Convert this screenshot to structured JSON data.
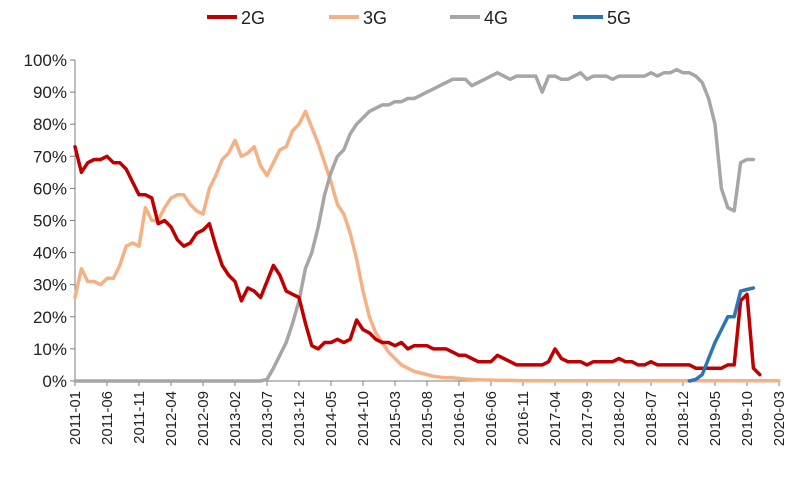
{
  "chart_data": {
    "type": "line",
    "title": "",
    "xlabel": "",
    "ylabel": "",
    "ylim": [
      0,
      100
    ],
    "y_ticks": [
      "0%",
      "10%",
      "20%",
      "30%",
      "40%",
      "50%",
      "60%",
      "70%",
      "80%",
      "90%",
      "100%"
    ],
    "x_ticks": [
      "2011-01",
      "2011-06",
      "2011-11",
      "2012-04",
      "2012-09",
      "2013-02",
      "2013-07",
      "2013-12",
      "2014-05",
      "2014-10",
      "2015-03",
      "2015-08",
      "2016-01",
      "2016-06",
      "2016-11",
      "2017-04",
      "2017-09",
      "2018-02",
      "2018-07",
      "2018-12",
      "2019-05",
      "2019-10",
      "2020-03"
    ],
    "x_index_range": [
      0,
      110
    ],
    "legend_position": "top",
    "grid": false,
    "series": [
      {
        "name": "2G",
        "color": "#c00000",
        "points": [
          [
            0,
            73
          ],
          [
            1,
            65
          ],
          [
            2,
            68
          ],
          [
            3,
            69
          ],
          [
            4,
            69
          ],
          [
            5,
            70
          ],
          [
            6,
            68
          ],
          [
            7,
            68
          ],
          [
            8,
            66
          ],
          [
            9,
            62
          ],
          [
            10,
            58
          ],
          [
            11,
            58
          ],
          [
            12,
            57
          ],
          [
            13,
            49
          ],
          [
            14,
            50
          ],
          [
            15,
            48
          ],
          [
            16,
            44
          ],
          [
            17,
            42
          ],
          [
            18,
            43
          ],
          [
            19,
            46
          ],
          [
            20,
            47
          ],
          [
            21,
            49
          ],
          [
            22,
            42
          ],
          [
            23,
            36
          ],
          [
            24,
            33
          ],
          [
            25,
            31
          ],
          [
            26,
            25
          ],
          [
            27,
            29
          ],
          [
            28,
            28
          ],
          [
            29,
            26
          ],
          [
            30,
            31
          ],
          [
            31,
            36
          ],
          [
            32,
            33
          ],
          [
            33,
            28
          ],
          [
            34,
            27
          ],
          [
            35,
            26
          ],
          [
            36,
            18
          ],
          [
            37,
            11
          ],
          [
            38,
            10
          ],
          [
            39,
            12
          ],
          [
            40,
            12
          ],
          [
            41,
            13
          ],
          [
            42,
            12
          ],
          [
            43,
            13
          ],
          [
            44,
            19
          ],
          [
            45,
            16
          ],
          [
            46,
            15
          ],
          [
            47,
            13
          ],
          [
            48,
            12
          ],
          [
            49,
            12
          ],
          [
            50,
            11
          ],
          [
            51,
            12
          ],
          [
            52,
            10
          ],
          [
            53,
            11
          ],
          [
            54,
            11
          ],
          [
            55,
            11
          ],
          [
            56,
            10
          ],
          [
            57,
            10
          ],
          [
            58,
            10
          ],
          [
            59,
            9
          ],
          [
            60,
            8
          ],
          [
            61,
            8
          ],
          [
            62,
            7
          ],
          [
            63,
            6
          ],
          [
            64,
            6
          ],
          [
            65,
            6
          ],
          [
            66,
            8
          ],
          [
            67,
            7
          ],
          [
            68,
            6
          ],
          [
            69,
            5
          ],
          [
            70,
            5
          ],
          [
            71,
            5
          ],
          [
            72,
            5
          ],
          [
            73,
            5
          ],
          [
            74,
            6
          ],
          [
            75,
            10
          ],
          [
            76,
            7
          ],
          [
            77,
            6
          ],
          [
            78,
            6
          ],
          [
            79,
            6
          ],
          [
            80,
            5
          ],
          [
            81,
            6
          ],
          [
            82,
            6
          ],
          [
            83,
            6
          ],
          [
            84,
            6
          ],
          [
            85,
            7
          ],
          [
            86,
            6
          ],
          [
            87,
            6
          ],
          [
            88,
            5
          ],
          [
            89,
            5
          ],
          [
            90,
            6
          ],
          [
            91,
            5
          ],
          [
            92,
            5
          ],
          [
            93,
            5
          ],
          [
            94,
            5
          ],
          [
            95,
            5
          ],
          [
            96,
            5
          ],
          [
            97,
            4
          ],
          [
            98,
            4
          ],
          [
            99,
            4
          ],
          [
            100,
            4
          ],
          [
            101,
            4
          ],
          [
            102,
            5
          ],
          [
            103,
            5
          ],
          [
            104,
            25
          ],
          [
            105,
            27
          ],
          [
            106,
            4
          ],
          [
            107,
            2
          ]
        ]
      },
      {
        "name": "3G",
        "color": "#f4b183",
        "points": [
          [
            0,
            26
          ],
          [
            1,
            35
          ],
          [
            2,
            31
          ],
          [
            3,
            31
          ],
          [
            4,
            30
          ],
          [
            5,
            32
          ],
          [
            6,
            32
          ],
          [
            7,
            36
          ],
          [
            8,
            42
          ],
          [
            9,
            43
          ],
          [
            10,
            42
          ],
          [
            11,
            54
          ],
          [
            12,
            50
          ],
          [
            13,
            50
          ],
          [
            14,
            54
          ],
          [
            15,
            57
          ],
          [
            16,
            58
          ],
          [
            17,
            58
          ],
          [
            18,
            55
          ],
          [
            19,
            53
          ],
          [
            20,
            52
          ],
          [
            21,
            60
          ],
          [
            22,
            64
          ],
          [
            23,
            69
          ],
          [
            24,
            71
          ],
          [
            25,
            75
          ],
          [
            26,
            70
          ],
          [
            27,
            71
          ],
          [
            28,
            73
          ],
          [
            29,
            67
          ],
          [
            30,
            64
          ],
          [
            31,
            68
          ],
          [
            32,
            72
          ],
          [
            33,
            73
          ],
          [
            34,
            78
          ],
          [
            35,
            80
          ],
          [
            36,
            84
          ],
          [
            37,
            79
          ],
          [
            38,
            74
          ],
          [
            39,
            68
          ],
          [
            40,
            62
          ],
          [
            41,
            55
          ],
          [
            42,
            52
          ],
          [
            43,
            46
          ],
          [
            44,
            38
          ],
          [
            45,
            28
          ],
          [
            46,
            20
          ],
          [
            47,
            15
          ],
          [
            48,
            12
          ],
          [
            49,
            9
          ],
          [
            50,
            7
          ],
          [
            51,
            5
          ],
          [
            52,
            4
          ],
          [
            53,
            3
          ],
          [
            54,
            2.5
          ],
          [
            55,
            2
          ],
          [
            56,
            1.5
          ],
          [
            57,
            1.2
          ],
          [
            58,
            1
          ],
          [
            59,
            1
          ],
          [
            60,
            0.8
          ],
          [
            61,
            0.6
          ],
          [
            62,
            0.5
          ],
          [
            63,
            0.4
          ],
          [
            64,
            0.3
          ],
          [
            65,
            0.3
          ],
          [
            66,
            0.2
          ],
          [
            67,
            0.2
          ],
          [
            68,
            0.2
          ],
          [
            70,
            0.1
          ],
          [
            110,
            0.1
          ]
        ]
      },
      {
        "name": "4G",
        "color": "#a6a6a6",
        "points": [
          [
            0,
            0
          ],
          [
            29,
            0
          ],
          [
            30,
            0.5
          ],
          [
            31,
            4
          ],
          [
            32,
            8
          ],
          [
            33,
            12
          ],
          [
            34,
            18
          ],
          [
            35,
            25
          ],
          [
            36,
            35
          ],
          [
            37,
            40
          ],
          [
            38,
            48
          ],
          [
            39,
            58
          ],
          [
            40,
            65
          ],
          [
            41,
            70
          ],
          [
            42,
            72
          ],
          [
            43,
            77
          ],
          [
            44,
            80
          ],
          [
            45,
            82
          ],
          [
            46,
            84
          ],
          [
            47,
            85
          ],
          [
            48,
            86
          ],
          [
            49,
            86
          ],
          [
            50,
            87
          ],
          [
            51,
            87
          ],
          [
            52,
            88
          ],
          [
            53,
            88
          ],
          [
            54,
            89
          ],
          [
            55,
            90
          ],
          [
            56,
            91
          ],
          [
            57,
            92
          ],
          [
            58,
            93
          ],
          [
            59,
            94
          ],
          [
            60,
            94
          ],
          [
            61,
            94
          ],
          [
            62,
            92
          ],
          [
            63,
            93
          ],
          [
            64,
            94
          ],
          [
            65,
            95
          ],
          [
            66,
            96
          ],
          [
            67,
            95
          ],
          [
            68,
            94
          ],
          [
            69,
            95
          ],
          [
            70,
            95
          ],
          [
            71,
            95
          ],
          [
            72,
            95
          ],
          [
            73,
            90
          ],
          [
            74,
            95
          ],
          [
            75,
            95
          ],
          [
            76,
            94
          ],
          [
            77,
            94
          ],
          [
            78,
            95
          ],
          [
            79,
            96
          ],
          [
            80,
            94
          ],
          [
            81,
            95
          ],
          [
            82,
            95
          ],
          [
            83,
            95
          ],
          [
            84,
            94
          ],
          [
            85,
            95
          ],
          [
            86,
            95
          ],
          [
            87,
            95
          ],
          [
            88,
            95
          ],
          [
            89,
            95
          ],
          [
            90,
            96
          ],
          [
            91,
            95
          ],
          [
            92,
            96
          ],
          [
            93,
            96
          ],
          [
            94,
            97
          ],
          [
            95,
            96
          ],
          [
            96,
            96
          ],
          [
            97,
            95
          ],
          [
            98,
            93
          ],
          [
            99,
            88
          ],
          [
            100,
            80
          ],
          [
            101,
            60
          ],
          [
            102,
            54
          ],
          [
            103,
            53
          ],
          [
            104,
            68
          ],
          [
            105,
            69
          ],
          [
            106,
            69
          ]
        ]
      },
      {
        "name": "5G",
        "color": "#2e75b6",
        "points": [
          [
            96,
            0
          ],
          [
            97,
            0.5
          ],
          [
            98,
            2
          ],
          [
            99,
            7
          ],
          [
            100,
            12
          ],
          [
            101,
            16
          ],
          [
            102,
            20
          ],
          [
            103,
            20
          ],
          [
            104,
            28
          ],
          [
            105,
            28.5
          ],
          [
            106,
            29
          ]
        ]
      }
    ]
  }
}
